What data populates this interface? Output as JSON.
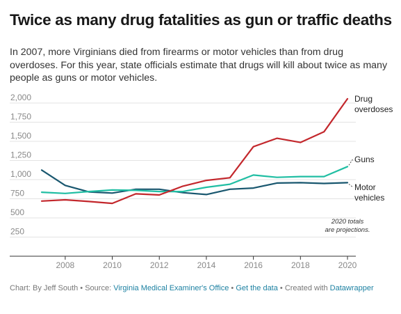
{
  "title": "Twice as many drug fatalities as gun or traffic deaths",
  "subtitle": "In 2007, more Virginians died from firearms or motor vehicles than from drug overdoses. For this year, state officials estimate that drugs will kill about twice as many people as guns or motor vehicles.",
  "footer": {
    "chart_by": "Chart: By Jeff South",
    "sep1": " • ",
    "source_label": "Source: ",
    "source_link": "Virginia Medical Examiner's Office",
    "sep2": " • ",
    "data_link": "Get the data",
    "sep3": " • ",
    "created_label": "Created with ",
    "created_link": "Datawrapper"
  },
  "colors": {
    "drug": "#c3272c",
    "guns": "#20bea3",
    "motor": "#19576f",
    "grid": "#e3e3e3",
    "axis": "#333333",
    "tick_text": "#888888"
  },
  "chart_data": {
    "type": "line",
    "title": "Twice as many drug fatalities as gun or traffic deaths",
    "xlabel": "",
    "ylabel": "",
    "xlim": [
      2007,
      2020
    ],
    "ylim": [
      0,
      2000
    ],
    "y_ticks": [
      250,
      500,
      750,
      1000,
      1250,
      1500,
      1750,
      2000
    ],
    "y_tick_labels": [
      "250",
      "500",
      "750",
      "1,000",
      "1,250",
      "1,500",
      "1,750",
      "2,000"
    ],
    "x_ticks": [
      2008,
      2010,
      2012,
      2014,
      2016,
      2018,
      2020
    ],
    "x_tick_labels": [
      "2008",
      "2010",
      "2012",
      "2014",
      "2016",
      "2018",
      "2020"
    ],
    "grid": "horizontal",
    "x": [
      2007,
      2008,
      2009,
      2010,
      2011,
      2012,
      2013,
      2014,
      2015,
      2016,
      2017,
      2018,
      2019,
      2020
    ],
    "series": [
      {
        "key": "drug",
        "name": "Drug overdoses",
        "label_lines": [
          "Drug",
          "overdoses"
        ],
        "color": "#c3272c",
        "values": [
          720,
          736,
          715,
          690,
          815,
          800,
          915,
          990,
          1025,
          1430,
          1540,
          1485,
          1625,
          2055
        ]
      },
      {
        "key": "guns",
        "name": "Guns",
        "label_lines": [
          "Guns"
        ],
        "color": "#20bea3",
        "values": [
          835,
          820,
          845,
          865,
          860,
          845,
          845,
          900,
          940,
          1060,
          1030,
          1040,
          1040,
          1170
        ]
      },
      {
        "key": "motor",
        "name": "Motor vehicles",
        "label_lines": [
          "Motor",
          "vehicles"
        ],
        "color": "#19576f",
        "values": [
          1125,
          925,
          840,
          825,
          875,
          875,
          830,
          805,
          875,
          890,
          955,
          960,
          950,
          960
        ]
      }
    ],
    "annotation": [
      "2020 totals",
      "are projections."
    ]
  }
}
